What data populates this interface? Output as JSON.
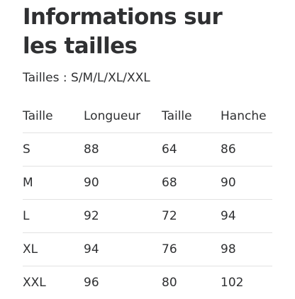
{
  "title_line1": "Informations sur",
  "title_line2": "les tailles",
  "subtitle": "Tailles : S/M/L/XL/XXL",
  "table": {
    "headers": [
      "Taille",
      "Longueur",
      "Taille",
      "Hanche"
    ],
    "rows": [
      [
        "S",
        "88",
        "64",
        "86"
      ],
      [
        "M",
        "90",
        "68",
        "90"
      ],
      [
        "L",
        "92",
        "72",
        "94"
      ],
      [
        "XL",
        "94",
        "76",
        "98"
      ],
      [
        "XXL",
        "96",
        "80",
        "102"
      ]
    ]
  }
}
